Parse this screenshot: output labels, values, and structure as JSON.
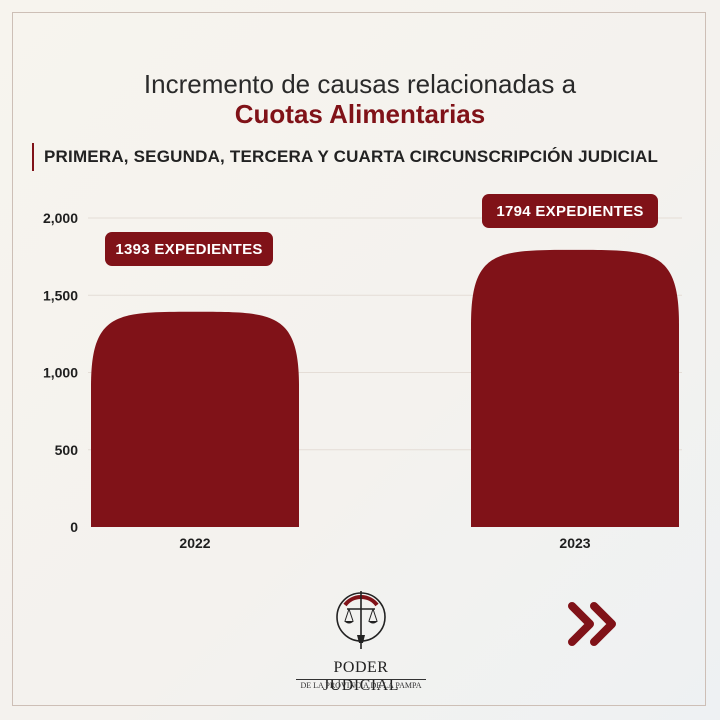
{
  "header": {
    "title": "Incremento de causas relacionadas a",
    "subtitle": "Cuotas Alimentarias",
    "section": "PRIMERA, SEGUNDA, TERCERA Y CUARTA CIRCUNSCRIPCIÓN JUDICIAL"
  },
  "chart_data": {
    "type": "bar",
    "categories": [
      "2022",
      "2023"
    ],
    "values": [
      1393,
      1794
    ],
    "data_labels": [
      "1393 EXPEDIENTES",
      "1794 EXPEDIENTES"
    ],
    "ylim": [
      0,
      2000
    ],
    "yticks": [
      0,
      500,
      1000,
      1500,
      2000
    ],
    "ytick_labels": [
      "0",
      "500",
      "1,000",
      "1,500",
      "2,000"
    ],
    "grid": true,
    "colors": {
      "bar": "#801218",
      "grid": "#e4ddd6"
    }
  },
  "footer": {
    "logo_name": "PODER JUDICIAL",
    "logo_sub": "DE LA PROVINCIA DE LA PAMPA",
    "logo_icon": "scales-of-justice-icon",
    "next_icon": "double-chevron-right-icon",
    "accent": "#801218"
  }
}
